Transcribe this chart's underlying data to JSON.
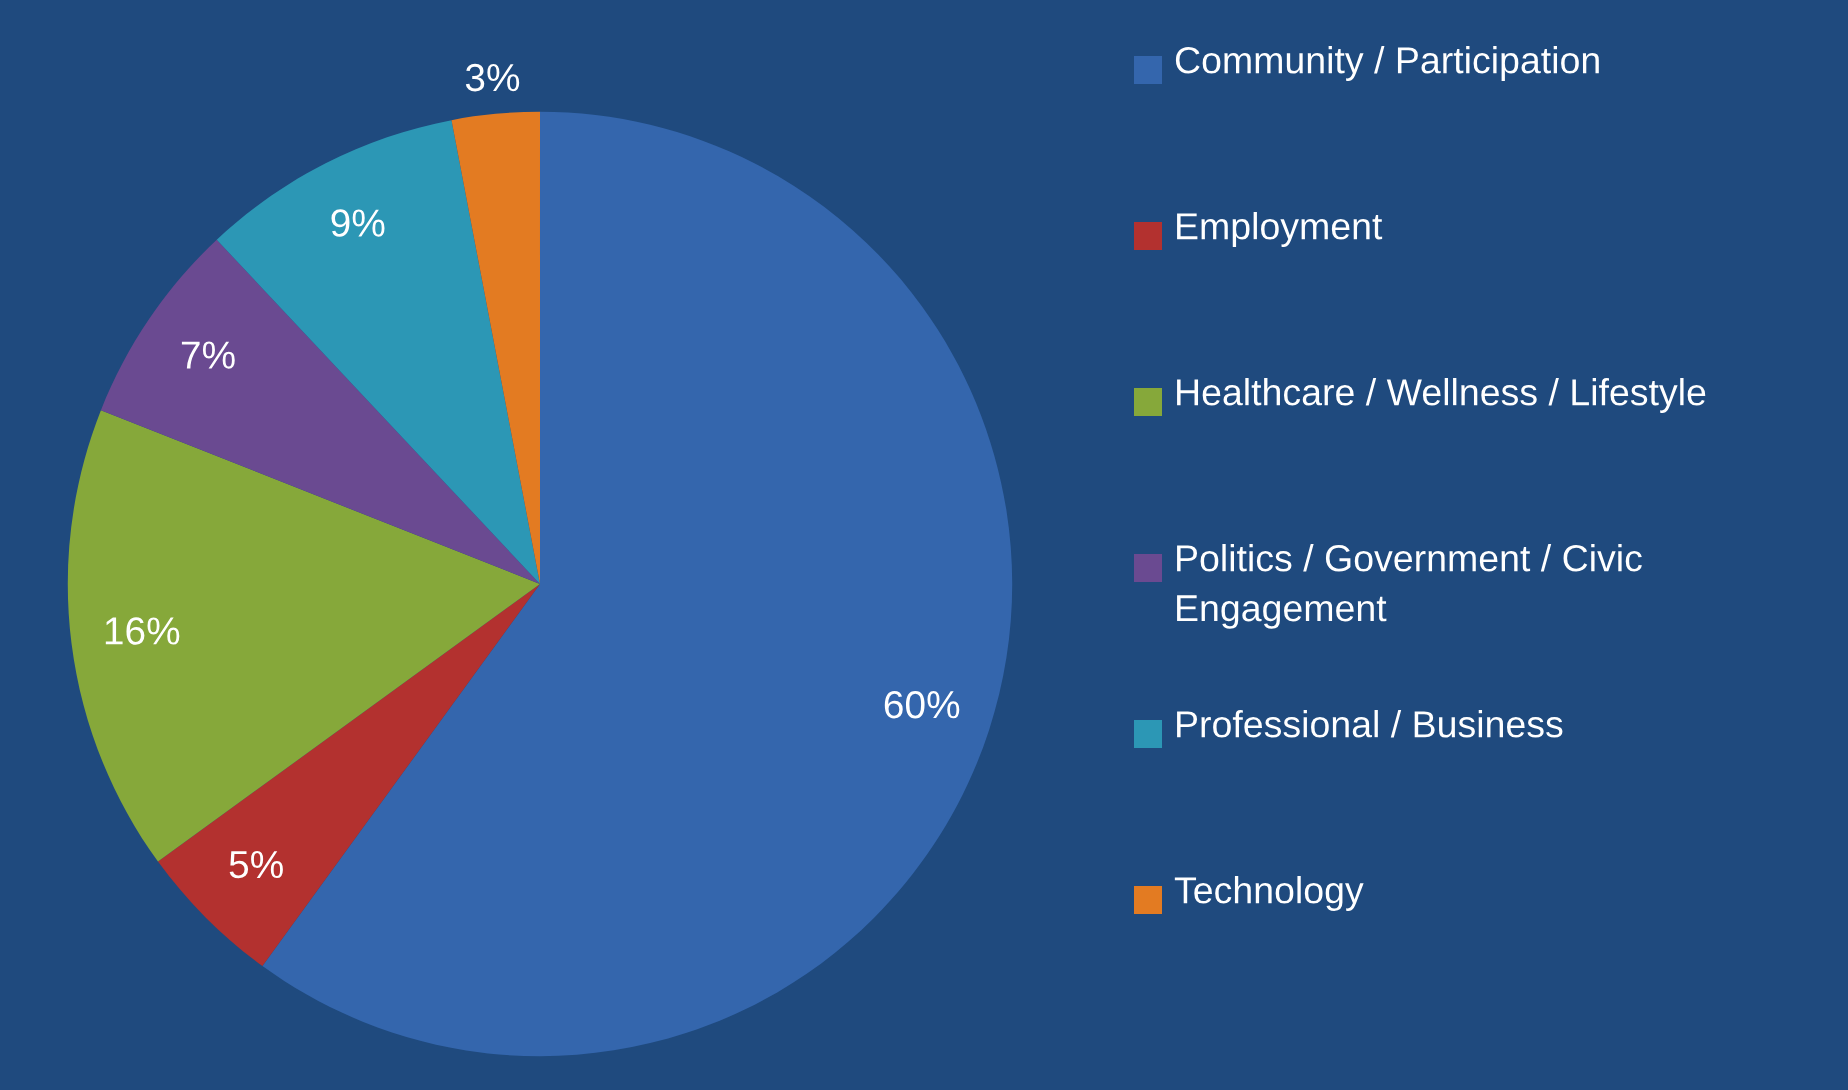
{
  "chart_data": {
    "type": "pie",
    "categories": [
      "Community / Participation",
      "Employment",
      "Healthcare / Wellness / Lifestyle",
      "Politics / Government / Civic Engagement",
      "Professional / Business",
      "Technology"
    ],
    "values": [
      60,
      5,
      16,
      7,
      9,
      3
    ],
    "value_labels": [
      "60%",
      "5%",
      "16%",
      "7%",
      "9%",
      "3%"
    ],
    "colors": [
      "#3466ad",
      "#b3312f",
      "#86a83a",
      "#6a4a91",
      "#2c97b5",
      "#e37b22"
    ],
    "legend": "right"
  }
}
